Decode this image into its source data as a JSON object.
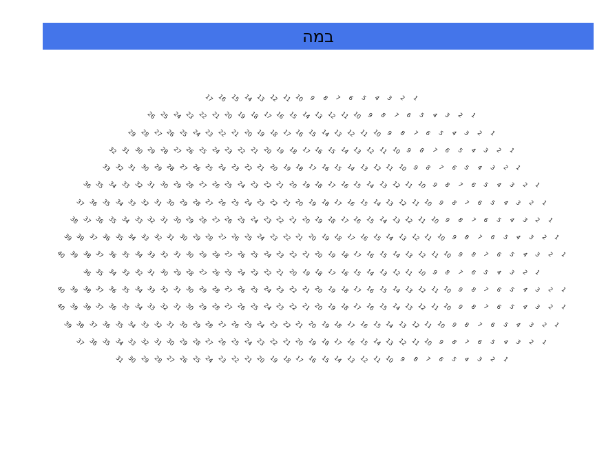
{
  "stage": {
    "label": "במה",
    "color": "#4475ea"
  },
  "seating": {
    "direction": "rtl",
    "rows": [
      {
        "row": 1,
        "seats": 17
      },
      {
        "row": 2,
        "seats": 26
      },
      {
        "row": 3,
        "seats": 29
      },
      {
        "row": 4,
        "seats": 32
      },
      {
        "row": 5,
        "seats": 33
      },
      {
        "row": 6,
        "seats": 36
      },
      {
        "row": 7,
        "seats": 37
      },
      {
        "row": 8,
        "seats": 38
      },
      {
        "row": 9,
        "seats": 39
      },
      {
        "row": 10,
        "seats": 40
      },
      {
        "row": 11,
        "seats": 36
      },
      {
        "row": 12,
        "seats": 40
      },
      {
        "row": 13,
        "seats": 40
      },
      {
        "row": 14,
        "seats": 39
      },
      {
        "row": 15,
        "seats": 37
      },
      {
        "row": 16,
        "seats": 31
      }
    ]
  }
}
